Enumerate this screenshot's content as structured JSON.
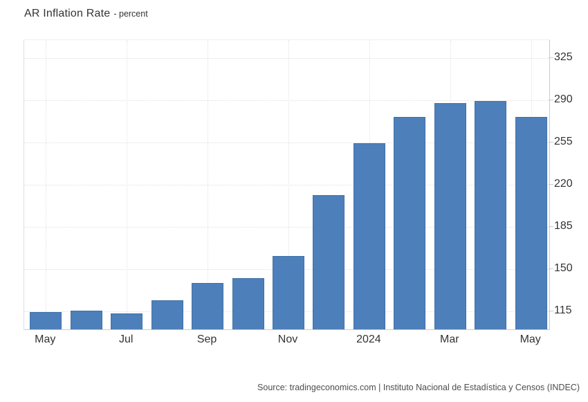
{
  "title": {
    "text": "AR Inflation Rate",
    "subtitle": "- percent"
  },
  "source": "Source: tradingeconomics.com | Instituto Nacional de Estadística y Censos (INDEC)",
  "colors": {
    "bar_fill": "#4d7fbb",
    "bar_border": "#3f70a8",
    "grid": "#e0e0e0",
    "axis": "#cccccc",
    "label_text": "#333333",
    "source_text": "#4d4d4d"
  },
  "chart_data": {
    "type": "bar",
    "title": "AR Inflation Rate",
    "subtitle": "percent",
    "categories": [
      "May",
      "Jun",
      "Jul",
      "Aug",
      "Sep",
      "Oct",
      "Nov",
      "Dec",
      "Jan 2024",
      "Feb",
      "Mar",
      "Apr",
      "May"
    ],
    "values": [
      114.2,
      115.6,
      113.4,
      124.4,
      138.3,
      142.7,
      160.9,
      211.4,
      254.2,
      276.2,
      287.9,
      289.4,
      276.4
    ],
    "x_tick_labels": [
      "May",
      "Jul",
      "Sep",
      "Nov",
      "2024",
      "Mar",
      "May"
    ],
    "x_tick_every": 2,
    "y_ticks": [
      115,
      150,
      185,
      220,
      255,
      290,
      325
    ],
    "ylim": [
      100,
      340
    ],
    "xlabel": "",
    "ylabel": "percent",
    "y_axis_position": "right",
    "grid": true,
    "legend": false
  }
}
